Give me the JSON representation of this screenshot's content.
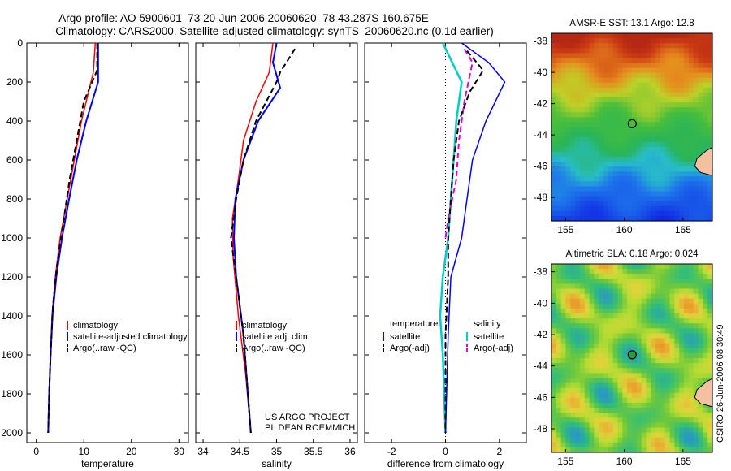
{
  "title_line1": "Argo profile: AO 5900601_73 20-Jun-2006 20060620_78 43.287S 160.675E",
  "title_line2": "Climatology: CARS2000. Satellite-adjusted climatology: synTS_20060620.nc (0.1d earlier)",
  "side_stamp": "CSIRO 26-Jun-2006 08:30:49",
  "project_line1": "US ARGO PROJECT",
  "project_line2": "PI: DEAN ROEMMICH",
  "colors": {
    "climatology": "#ff0000",
    "satellite": "#0000ff",
    "argo": "#000000",
    "temp_diff": "#00cccc",
    "sal_diff_argo": "#dd00dd"
  },
  "chart_data": [
    {
      "type": "line",
      "xlabel": "temperature",
      "xlim": [
        -2,
        32
      ],
      "xticks": [
        0,
        10,
        20,
        30
      ],
      "ylim": [
        2050,
        0
      ],
      "yticks": [
        0,
        200,
        400,
        600,
        800,
        1000,
        1200,
        1400,
        1600,
        1800,
        2000
      ],
      "legend": [
        "climatology",
        "satellite-adjusted climatology",
        "Argo(..raw -QC)"
      ],
      "series": [
        {
          "name": "climatology",
          "points": [
            [
              12.4,
              0
            ],
            [
              12.0,
              150
            ],
            [
              9.5,
              400
            ],
            [
              8.0,
              600
            ],
            [
              6.5,
              800
            ],
            [
              5.0,
              1000
            ],
            [
              4.0,
              1200
            ],
            [
              3.3,
              1400
            ],
            [
              3.0,
              1600
            ],
            [
              2.7,
              1800
            ],
            [
              2.5,
              2000
            ]
          ]
        },
        {
          "name": "satellite-adjusted climatology",
          "points": [
            [
              13.0,
              0
            ],
            [
              13.0,
              200
            ],
            [
              10.5,
              400
            ],
            [
              8.5,
              600
            ],
            [
              6.9,
              800
            ],
            [
              5.4,
              1000
            ],
            [
              4.2,
              1200
            ],
            [
              3.4,
              1400
            ],
            [
              3.0,
              1600
            ],
            [
              2.7,
              1800
            ],
            [
              2.5,
              2000
            ]
          ]
        },
        {
          "name": "Argo(..raw -QC)",
          "points": [
            [
              12.8,
              0
            ],
            [
              12.8,
              140
            ],
            [
              10.0,
              300
            ],
            [
              8.5,
              500
            ],
            [
              7.0,
              700
            ],
            [
              5.5,
              950
            ],
            [
              4.3,
              1150
            ],
            [
              3.5,
              1350
            ],
            [
              3.0,
              1600
            ],
            [
              2.7,
              1800
            ],
            [
              2.5,
              2000
            ]
          ]
        }
      ]
    },
    {
      "type": "line",
      "xlabel": "salinity",
      "xlim": [
        33.9,
        36.1
      ],
      "xticks": [
        34,
        34.5,
        35,
        35.5,
        36
      ],
      "ylim": [
        2050,
        0
      ],
      "legend": [
        "climatology",
        "satellite adj. clim.",
        "Argo(..raw -QC)"
      ],
      "series": [
        {
          "name": "climatology",
          "points": [
            [
              34.95,
              0
            ],
            [
              34.9,
              150
            ],
            [
              34.72,
              300
            ],
            [
              34.55,
              500
            ],
            [
              34.48,
              700
            ],
            [
              34.4,
              900
            ],
            [
              34.41,
              1100
            ],
            [
              34.48,
              1400
            ],
            [
              34.58,
              1700
            ],
            [
              34.65,
              2000
            ]
          ]
        },
        {
          "name": "satellite adj. clim.",
          "points": [
            [
              35.0,
              0
            ],
            [
              34.95,
              100
            ],
            [
              35.05,
              230
            ],
            [
              34.75,
              400
            ],
            [
              34.55,
              600
            ],
            [
              34.44,
              800
            ],
            [
              34.42,
              1000
            ],
            [
              34.45,
              1200
            ],
            [
              34.55,
              1500
            ],
            [
              34.65,
              2000
            ]
          ]
        },
        {
          "name": "Argo(..raw -QC)",
          "points": [
            [
              35.25,
              30
            ],
            [
              35.05,
              150
            ],
            [
              35.0,
              200
            ],
            [
              34.72,
              400
            ],
            [
              34.55,
              600
            ],
            [
              34.45,
              800
            ],
            [
              34.38,
              1000
            ],
            [
              34.45,
              1200
            ],
            [
              34.55,
              1500
            ],
            [
              34.65,
              2000
            ]
          ]
        }
      ]
    },
    {
      "type": "line",
      "xlabel": "difference from climatology",
      "xlim": [
        -3,
        3
      ],
      "xticks": [
        -2,
        0,
        2
      ],
      "ylim": [
        2050,
        0
      ],
      "legend": [
        "temperature",
        "satellite",
        "Argo(-adj)",
        "salinity",
        "satellite",
        "Argo(-adj)"
      ],
      "series": [
        {
          "name": "temperature satellite",
          "points": [
            [
              0.6,
              0
            ],
            [
              1.6,
              100
            ],
            [
              2.2,
              200
            ],
            [
              1.5,
              400
            ],
            [
              1.0,
              600
            ],
            [
              0.8,
              800
            ],
            [
              0.6,
              1000
            ],
            [
              0.2,
              1200
            ],
            [
              0.1,
              1500
            ],
            [
              0.0,
              2000
            ]
          ]
        },
        {
          "name": "temperature Argo(-adj)",
          "points": [
            [
              0.8,
              40
            ],
            [
              1.4,
              140
            ],
            [
              0.9,
              250
            ],
            [
              0.5,
              400
            ],
            [
              0.3,
              600
            ],
            [
              0.2,
              800
            ],
            [
              0.1,
              1000
            ],
            [
              0.1,
              1200
            ],
            [
              0.0,
              1500
            ],
            [
              0.0,
              2000
            ]
          ]
        },
        {
          "name": "salinity satellite",
          "points": [
            [
              -0.1,
              0
            ],
            [
              0.6,
              200
            ],
            [
              0.4,
              400
            ],
            [
              0.3,
              600
            ],
            [
              0.2,
              800
            ],
            [
              0.1,
              1000
            ],
            [
              -0.1,
              1200
            ],
            [
              -0.2,
              1400
            ],
            [
              -0.1,
              1600
            ],
            [
              0.0,
              2000
            ]
          ]
        },
        {
          "name": "salinity Argo(-adj)",
          "points": [
            [
              0.7,
              30
            ],
            [
              1.0,
              100
            ],
            [
              0.7,
              300
            ],
            [
              0.5,
              500
            ],
            [
              0.4,
              700
            ],
            [
              0.1,
              900
            ],
            [
              0.0,
              1000
            ]
          ]
        }
      ]
    },
    {
      "type": "heatmap",
      "title": "AMSR-E SST: 13.1 Argo: 12.8",
      "xticks": [
        155,
        160,
        165
      ],
      "yticks": [
        -38,
        -40,
        -42,
        -44,
        -46,
        -48
      ],
      "xlim": [
        153.8,
        167.5
      ],
      "ylim": [
        -49.5,
        -37.5
      ],
      "marker": [
        160.675,
        -43.287
      ]
    },
    {
      "type": "heatmap",
      "title": "Altimetric SLA: 0.18 Argo: 0.024",
      "xticks": [
        155,
        160,
        165
      ],
      "yticks": [
        -38,
        -40,
        -42,
        -44,
        -46,
        -48
      ],
      "xlim": [
        153.8,
        167.5
      ],
      "ylim": [
        -49.5,
        -37.5
      ],
      "marker": [
        160.675,
        -43.287
      ]
    }
  ]
}
